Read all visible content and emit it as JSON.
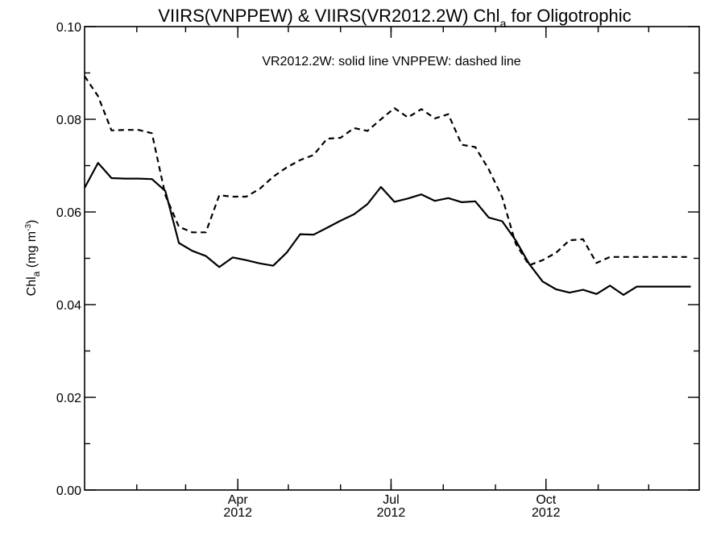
{
  "chart_data": {
    "type": "line",
    "title": {
      "main": "VIIRS(VNPPEW) & VIIRS(VR2012.2W)  Chl",
      "sub": "a",
      "suffix": " for Oligotrophic"
    },
    "legend_note": "VR2012.2W: solid line   VNPPEW: dashed line",
    "ylabel": {
      "main": "Chl",
      "sub": "a",
      "unit": " (mg m",
      "sup": "-3",
      "close": ")"
    },
    "ylim": [
      0.0,
      0.1
    ],
    "yticks": [
      "0.00",
      "0.02",
      "0.04",
      "0.06",
      "0.08",
      "0.10"
    ],
    "xticks": [
      {
        "month": "Apr",
        "year": "2012",
        "x": "2012-04-01"
      },
      {
        "month": "Jul",
        "year": "2012",
        "x": "2012-07-01"
      },
      {
        "month": "Oct",
        "year": "2012",
        "x": "2012-10-01"
      }
    ],
    "xlim": [
      "2012-01-01",
      "2012-12-31"
    ],
    "x": [
      "2012-01-01",
      "2012-01-09",
      "2012-01-17",
      "2012-01-25",
      "2012-02-02",
      "2012-02-10",
      "2012-02-18",
      "2012-02-26",
      "2012-03-05",
      "2012-03-13",
      "2012-03-21",
      "2012-03-29",
      "2012-04-06",
      "2012-04-14",
      "2012-04-22",
      "2012-04-30",
      "2012-05-08",
      "2012-05-16",
      "2012-05-24",
      "2012-06-01",
      "2012-06-09",
      "2012-06-17",
      "2012-06-25",
      "2012-07-03",
      "2012-07-11",
      "2012-07-19",
      "2012-07-27",
      "2012-08-04",
      "2012-08-12",
      "2012-08-20",
      "2012-08-28",
      "2012-09-05",
      "2012-09-13",
      "2012-09-21",
      "2012-09-29",
      "2012-10-07",
      "2012-10-15",
      "2012-10-23",
      "2012-10-31",
      "2012-11-08",
      "2012-11-16",
      "2012-11-24",
      "2012-12-02",
      "2012-12-10",
      "2012-12-18",
      "2012-12-26"
    ],
    "series": [
      {
        "name": "VR2012.2W",
        "style": "solid",
        "color": "#000000",
        "values": [
          0.0652,
          0.0706,
          0.0673,
          0.0672,
          0.0672,
          0.0671,
          0.0645,
          0.0533,
          0.0516,
          0.0505,
          0.0481,
          0.0502,
          0.0496,
          0.0489,
          0.0484,
          0.0512,
          0.0552,
          0.0551,
          0.0566,
          0.0581,
          0.0595,
          0.0617,
          0.0654,
          0.0622,
          0.0629,
          0.0638,
          0.0624,
          0.063,
          0.0621,
          0.0623,
          0.0588,
          0.058,
          0.0539,
          0.0488,
          0.045,
          0.0433,
          0.0426,
          0.0432,
          0.0423,
          0.0441,
          0.0421,
          0.0439,
          0.0439,
          0.0439,
          0.0439,
          0.0439
        ]
      },
      {
        "name": "VNPPEW",
        "style": "dashed",
        "color": "#000000",
        "values": [
          0.0893,
          0.085,
          0.0776,
          0.0777,
          0.0777,
          0.077,
          0.0636,
          0.0568,
          0.0556,
          0.0556,
          0.0636,
          0.0633,
          0.0633,
          0.065,
          0.0676,
          0.0696,
          0.0712,
          0.0723,
          0.0758,
          0.076,
          0.0781,
          0.0775,
          0.08,
          0.0824,
          0.0804,
          0.0822,
          0.0802,
          0.0811,
          0.0745,
          0.074,
          0.0692,
          0.0632,
          0.0532,
          0.0485,
          0.0496,
          0.0512,
          0.0539,
          0.0541,
          0.049,
          0.0503,
          0.0503,
          0.0503,
          0.0503,
          0.0503,
          0.0503,
          0.0503
        ]
      }
    ]
  }
}
